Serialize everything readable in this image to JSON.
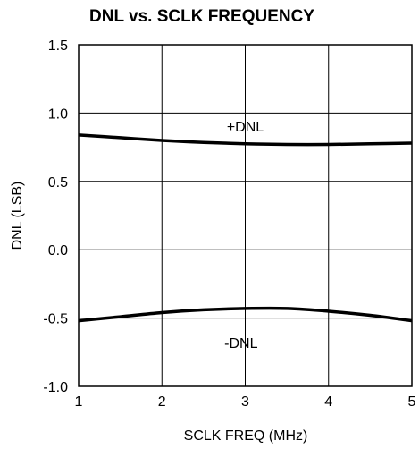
{
  "chart_data": {
    "type": "line",
    "title": "DNL vs. SCLK FREQUENCY",
    "xlabel": "SCLK FREQ (MHz)",
    "ylabel": "DNL (LSB)",
    "xlim": [
      1,
      5
    ],
    "ylim": [
      -1.0,
      1.5
    ],
    "x_ticks": [
      1,
      2,
      3,
      4,
      5
    ],
    "x_tick_labels": [
      "1",
      "2",
      "3",
      "4",
      "5"
    ],
    "y_ticks": [
      1.5,
      1.0,
      0.5,
      0.0,
      -0.5,
      -1.0
    ],
    "y_tick_labels": [
      "1.5",
      "1.0",
      "0.5",
      "0.0",
      "-0.5",
      "-1.0"
    ],
    "grid": true,
    "series": [
      {
        "name": "+DNL",
        "x": [
          1.0,
          1.5,
          2.0,
          2.5,
          3.0,
          3.5,
          4.0,
          4.5,
          5.0
        ],
        "y": [
          0.84,
          0.82,
          0.8,
          0.785,
          0.775,
          0.77,
          0.77,
          0.775,
          0.78
        ]
      },
      {
        "name": "-DNL",
        "x": [
          1.0,
          1.5,
          2.0,
          2.5,
          3.0,
          3.5,
          4.0,
          4.5,
          5.0
        ],
        "y": [
          -0.52,
          -0.49,
          -0.46,
          -0.44,
          -0.43,
          -0.43,
          -0.45,
          -0.48,
          -0.52
        ]
      }
    ],
    "annotations": [
      {
        "text": "+DNL",
        "series": "+DNL"
      },
      {
        "text": "-DNL",
        "series": "-DNL"
      }
    ]
  }
}
